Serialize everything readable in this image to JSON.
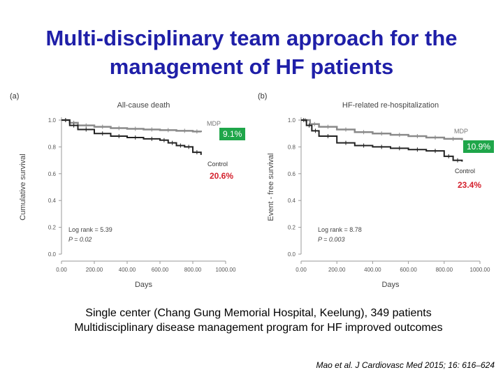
{
  "slide": {
    "title_line1": "Multi-disciplinary team approach for the",
    "title_line2": "management of HF patients",
    "caption_line1": "Single center (Chang Gung Memorial Hospital, Keelung), 349 patients",
    "caption_line2": "Multidisciplinary disease management program for HF improved outcomes",
    "citation": "Mao et al. J Cardiovasc Med 2015; 16: 616–624"
  },
  "chart_data": [
    {
      "type": "line",
      "panel": "(a)",
      "title": "All-cause death",
      "xlabel": "Days",
      "ylabel": "Cumulative survival",
      "xlim": [
        0,
        1000
      ],
      "ylim": [
        0,
        1
      ],
      "x_ticks": [
        "0.00",
        "200.00",
        "400.00",
        "600.00",
        "800.00",
        "1000.00"
      ],
      "y_ticks": [
        "0.0",
        "0.2",
        "0.4",
        "0.6",
        "0.8",
        "1.0"
      ],
      "series": [
        {
          "name": "MDP",
          "color": "#8a8a8a",
          "x": [
            0,
            50,
            100,
            200,
            300,
            400,
            500,
            600,
            700,
            800,
            850
          ],
          "y": [
            1.0,
            0.98,
            0.96,
            0.95,
            0.94,
            0.935,
            0.93,
            0.925,
            0.92,
            0.915,
            0.91
          ]
        },
        {
          "name": "Control",
          "color": "#222222",
          "x": [
            0,
            50,
            100,
            200,
            300,
            400,
            500,
            600,
            650,
            700,
            750,
            800,
            850
          ],
          "y": [
            1.0,
            0.96,
            0.93,
            0.9,
            0.88,
            0.87,
            0.86,
            0.85,
            0.83,
            0.81,
            0.8,
            0.76,
            0.74
          ]
        }
      ],
      "annotations": {
        "log_rank": "Log rank = 5.39",
        "p_value": "P = 0.02",
        "mdp_pct": "9.1%",
        "control_pct": "20.6%"
      }
    },
    {
      "type": "line",
      "panel": "(b)",
      "title": "HF-related re-hospitalization",
      "xlabel": "Days",
      "ylabel": "Event - free survival",
      "xlim": [
        0,
        1000
      ],
      "ylim": [
        0,
        1
      ],
      "x_ticks": [
        "0.00",
        "200.00",
        "400.00",
        "600.00",
        "800.00",
        "1000.00"
      ],
      "y_ticks": [
        "0.0",
        "0.2",
        "0.4",
        "0.6",
        "0.8",
        "1.0"
      ],
      "series": [
        {
          "name": "MDP",
          "color": "#8a8a8a",
          "x": [
            0,
            50,
            100,
            200,
            300,
            400,
            500,
            600,
            700,
            800,
            900
          ],
          "y": [
            1.0,
            0.97,
            0.95,
            0.93,
            0.91,
            0.9,
            0.89,
            0.88,
            0.87,
            0.86,
            0.85
          ]
        },
        {
          "name": "Control",
          "color": "#222222",
          "x": [
            0,
            30,
            60,
            100,
            200,
            300,
            400,
            500,
            600,
            700,
            800,
            850,
            900
          ],
          "y": [
            1.0,
            0.96,
            0.92,
            0.88,
            0.83,
            0.81,
            0.8,
            0.79,
            0.78,
            0.77,
            0.73,
            0.7,
            0.69
          ]
        }
      ],
      "annotations": {
        "log_rank": "Log rank = 8.78",
        "p_value": "P = 0.003",
        "mdp_pct": "10.9%",
        "control_pct": "23.4%"
      }
    }
  ]
}
